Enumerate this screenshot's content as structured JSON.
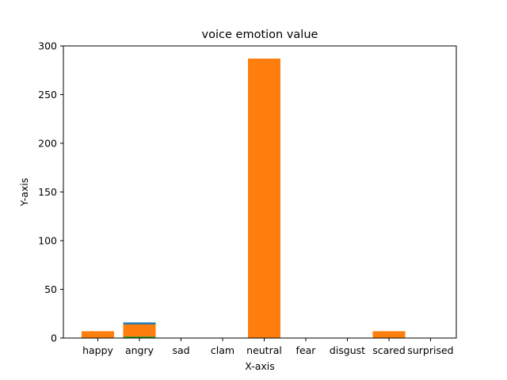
{
  "chart_data": {
    "type": "bar",
    "title": "voice emotion value",
    "xlabel": "X-axis",
    "ylabel": "Y-axis",
    "ylim": [
      0,
      300
    ],
    "yticks": [
      0,
      50,
      100,
      150,
      200,
      250,
      300
    ],
    "categories": [
      "happy",
      "angry",
      "sad",
      "clam",
      "neutral",
      "fear",
      "disgust",
      "scared",
      "surprised"
    ],
    "grid": false,
    "series": [
      {
        "values": [
          0,
          16,
          0,
          0,
          0,
          0,
          0,
          0,
          0
        ],
        "color": "#1f77b4"
      },
      {
        "values": [
          7,
          14,
          0,
          0,
          287,
          0,
          0,
          7,
          0
        ],
        "color": "#ff7f0e"
      },
      {
        "values": [
          0,
          1.5,
          0,
          0,
          0,
          0,
          0,
          0,
          0
        ],
        "color": "#2ca02c"
      }
    ]
  }
}
